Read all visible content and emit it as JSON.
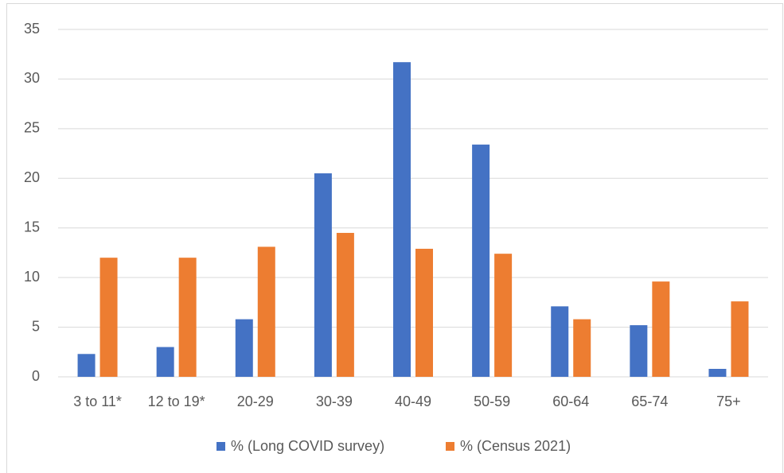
{
  "chart_data": {
    "type": "bar",
    "categories": [
      "3 to 11*",
      "12 to 19*",
      "20-29",
      "30-39",
      "40-49",
      "50-59",
      "60-64",
      "65-74",
      "75+"
    ],
    "series": [
      {
        "name": "% (Long COVID survey)",
        "color": "#4472c4",
        "values": [
          2.3,
          3.0,
          5.8,
          20.5,
          31.7,
          23.4,
          7.1,
          5.2,
          0.8
        ]
      },
      {
        "name": "% (Census 2021)",
        "color": "#ed7d31",
        "values": [
          12.0,
          12.0,
          13.1,
          14.5,
          12.9,
          12.4,
          5.8,
          9.6,
          7.6
        ]
      }
    ],
    "ylim": [
      0,
      35
    ],
    "yticks": [
      0,
      5,
      10,
      15,
      20,
      25,
      30,
      35
    ],
    "grid": true,
    "legend": "bottom"
  }
}
